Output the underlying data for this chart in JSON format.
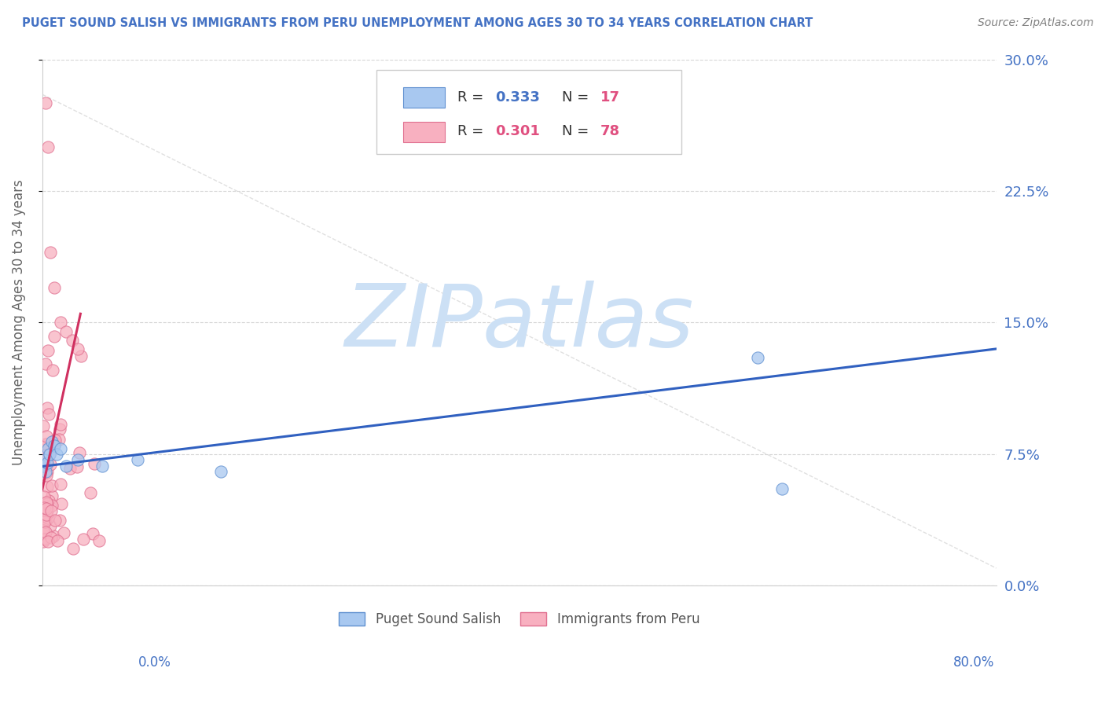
{
  "title": "PUGET SOUND SALISH VS IMMIGRANTS FROM PERU UNEMPLOYMENT AMONG AGES 30 TO 34 YEARS CORRELATION CHART",
  "source": "Source: ZipAtlas.com",
  "ylabel": "Unemployment Among Ages 30 to 34 years",
  "ytick_values": [
    0.0,
    0.075,
    0.15,
    0.225,
    0.3
  ],
  "xlim": [
    0.0,
    0.8
  ],
  "ylim": [
    0.0,
    0.3
  ],
  "series1_name": "Puget Sound Salish",
  "series1_color": "#a8c8f0",
  "series1_edge": "#6090d0",
  "series1_R": "0.333",
  "series1_N": "17",
  "series2_name": "Immigrants from Peru",
  "series2_color": "#f8b0c0",
  "series2_edge": "#e07090",
  "series2_R": "0.301",
  "series2_N": "78",
  "blue_line_color": "#3060c0",
  "pink_line_color": "#d03060",
  "ref_line_color": "#cccccc",
  "watermark": "ZIPatlas",
  "watermark_color": "#cce0f5",
  "title_color": "#4472c4",
  "source_color": "#808080",
  "right_axis_color": "#4472c4",
  "ylabel_color": "#666666",
  "legend_R_color": "#4472c4",
  "legend_N_color": "#e05080"
}
